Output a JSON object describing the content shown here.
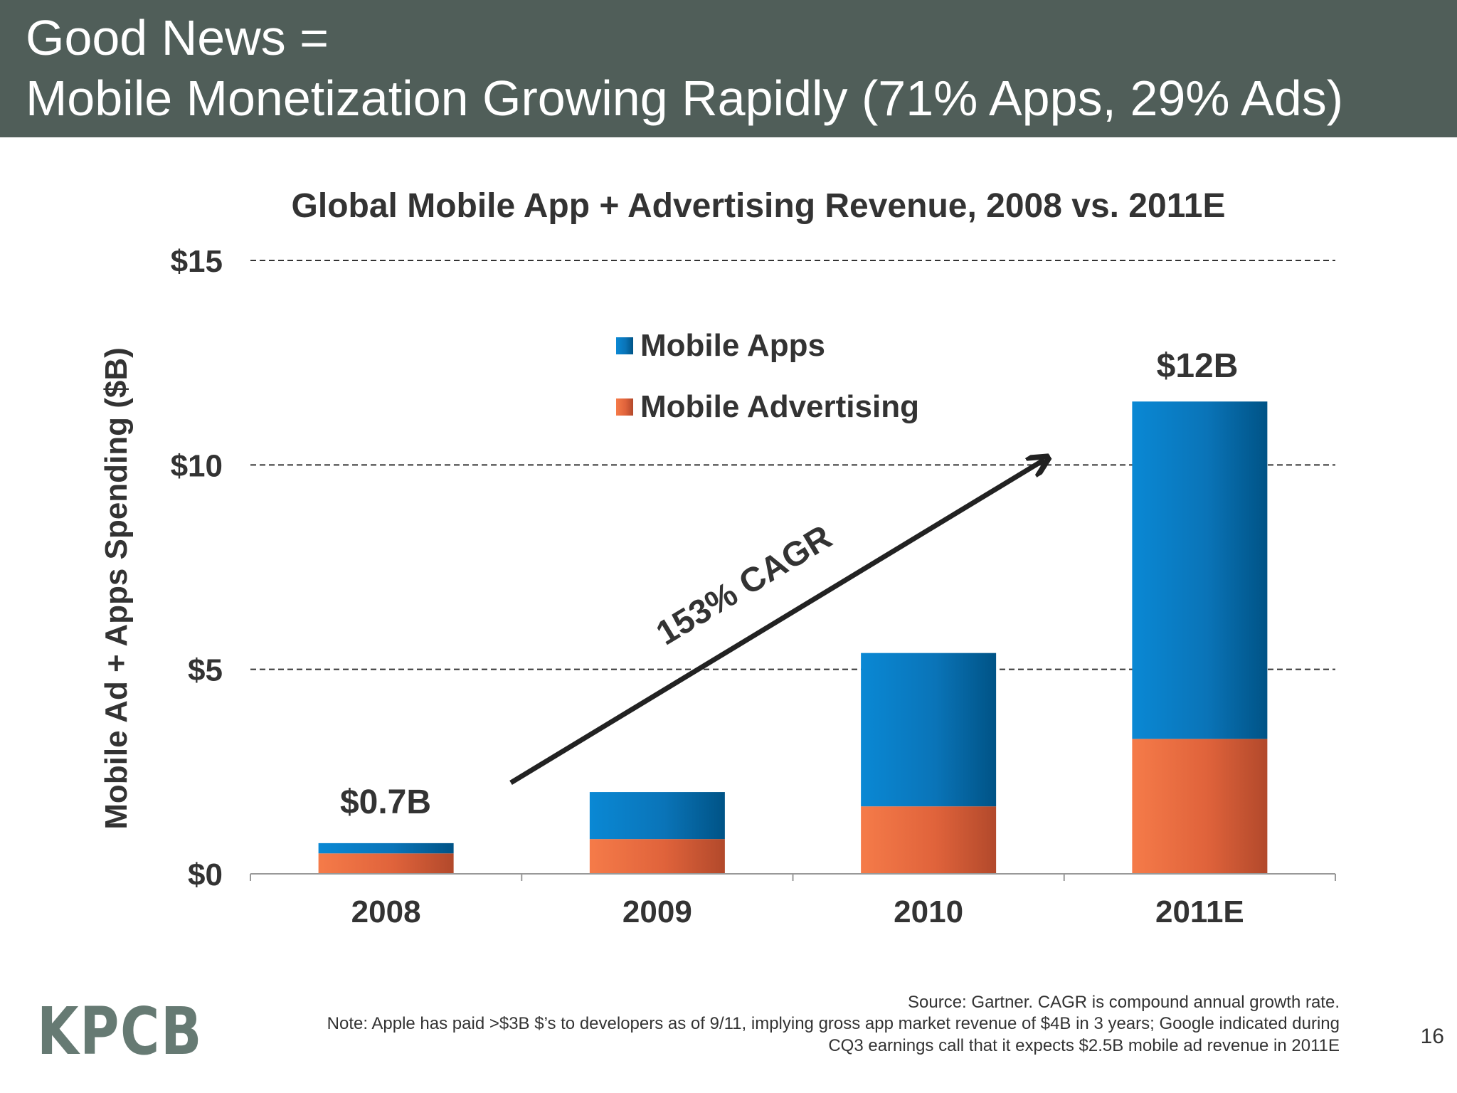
{
  "header": {
    "title_line1": "Good News =",
    "title_line2": "Mobile Monetization Growing Rapidly (71% Apps, 29% Ads)",
    "background": "#505e59"
  },
  "chart_data": {
    "type": "bar",
    "stacked": true,
    "title": "Global Mobile App + Advertising Revenue, 2008 vs. 2011E",
    "ylabel": "Mobile Ad + Apps Spending ($B)",
    "xlabel": "",
    "categories": [
      "2008",
      "2009",
      "2010",
      "2011E"
    ],
    "series": [
      {
        "name": "Mobile Advertising",
        "values": [
          0.5,
          0.85,
          1.65,
          3.3
        ],
        "color": "#e8663b"
      },
      {
        "name": "Mobile Apps",
        "values": [
          0.25,
          1.15,
          3.75,
          8.25
        ],
        "color": "#0077be"
      }
    ],
    "yticks": [
      0,
      5,
      10,
      15
    ],
    "ytick_labels": [
      "$0",
      "$5",
      "$10",
      "$15"
    ],
    "ylim": [
      0,
      15
    ],
    "grid": "dashed horizontal",
    "legend": "top-center",
    "annotations": {
      "total_2008": "$0.7B",
      "total_2011E": "$12B",
      "cagr": "153% CAGR"
    }
  },
  "footer": {
    "logo": "KPCB",
    "source": "Source: Gartner. CAGR is compound annual growth rate.",
    "note_line1": "Note: Apple has paid >$3B $’s to developers as of 9/11, implying gross app market revenue of $4B in 3 years; Google indicated during",
    "note_line2": "CQ3 earnings call that it expects $2.5B mobile ad revenue in 2011E",
    "page_number": "16"
  }
}
